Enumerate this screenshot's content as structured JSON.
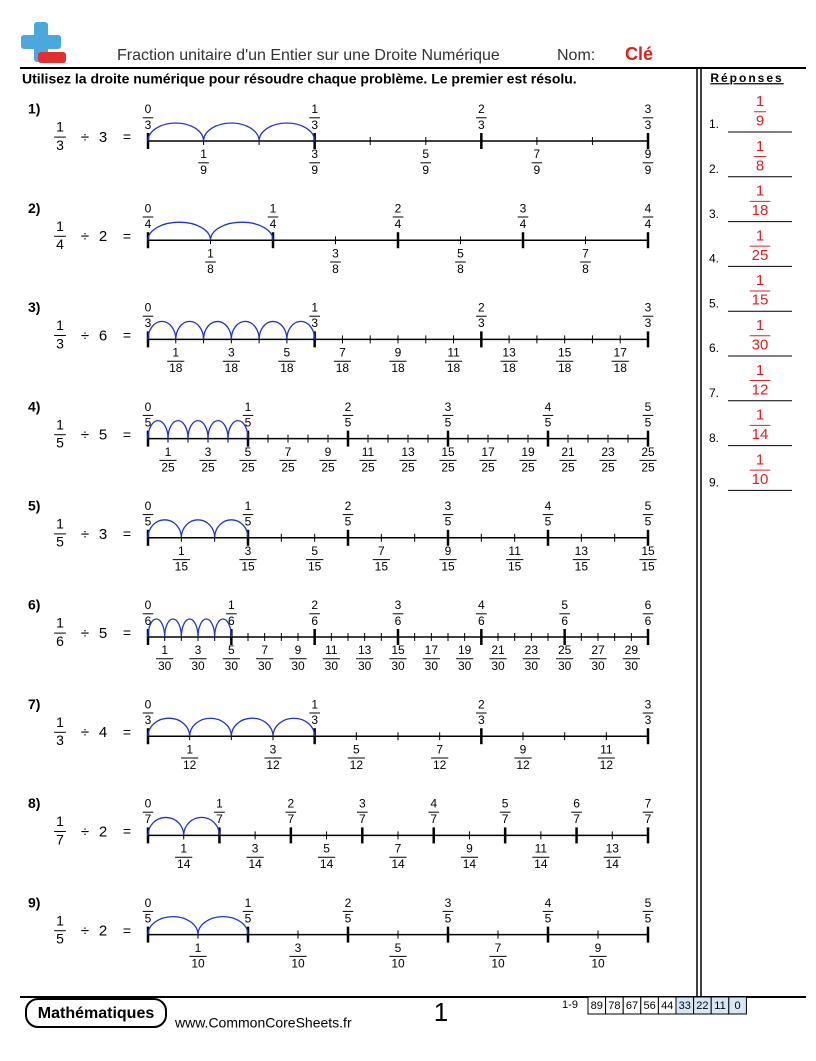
{
  "header": {
    "title": "Fraction unitaire d'un Entier sur une Droite Numérique",
    "name_label": "Nom:",
    "key": "Clé"
  },
  "instructions": "Utilisez la droite numérique pour résoudre chaque problème. Le premier est résolu.",
  "divide_sign": "÷",
  "equals_sign": "=",
  "problems": [
    {
      "label": "1)",
      "fraction": [
        1,
        3
      ],
      "divisor": 3,
      "top": [
        [
          0,
          3
        ],
        [
          1,
          3
        ],
        [
          2,
          3
        ],
        [
          3,
          3
        ]
      ],
      "bottom": [
        [
          1,
          9
        ],
        [
          3,
          9
        ],
        [
          5,
          9
        ],
        [
          7,
          9
        ],
        [
          9,
          9
        ]
      ]
    },
    {
      "label": "2)",
      "fraction": [
        1,
        4
      ],
      "divisor": 2,
      "top": [
        [
          0,
          4
        ],
        [
          1,
          4
        ],
        [
          2,
          4
        ],
        [
          3,
          4
        ],
        [
          4,
          4
        ]
      ],
      "bottom": [
        [
          1,
          8
        ],
        [
          3,
          8
        ],
        [
          5,
          8
        ],
        [
          7,
          8
        ]
      ]
    },
    {
      "label": "3)",
      "fraction": [
        1,
        3
      ],
      "divisor": 6,
      "top": [
        [
          0,
          3
        ],
        [
          1,
          3
        ],
        [
          2,
          3
        ],
        [
          3,
          3
        ]
      ],
      "bottom": [
        [
          1,
          18
        ],
        [
          3,
          18
        ],
        [
          5,
          18
        ],
        [
          7,
          18
        ],
        [
          9,
          18
        ],
        [
          11,
          18
        ],
        [
          13,
          18
        ],
        [
          15,
          18
        ],
        [
          17,
          18
        ]
      ]
    },
    {
      "label": "4)",
      "fraction": [
        1,
        5
      ],
      "divisor": 5,
      "top": [
        [
          0,
          5
        ],
        [
          1,
          5
        ],
        [
          2,
          5
        ],
        [
          3,
          5
        ],
        [
          4,
          5
        ],
        [
          5,
          5
        ]
      ],
      "bottom": [
        [
          1,
          25
        ],
        [
          3,
          25
        ],
        [
          5,
          25
        ],
        [
          7,
          25
        ],
        [
          9,
          25
        ],
        [
          11,
          25
        ],
        [
          13,
          25
        ],
        [
          15,
          25
        ],
        [
          17,
          25
        ],
        [
          19,
          25
        ],
        [
          21,
          25
        ],
        [
          23,
          25
        ],
        [
          25,
          25
        ]
      ]
    },
    {
      "label": "5)",
      "fraction": [
        1,
        5
      ],
      "divisor": 3,
      "top": [
        [
          0,
          5
        ],
        [
          1,
          5
        ],
        [
          2,
          5
        ],
        [
          3,
          5
        ],
        [
          4,
          5
        ],
        [
          5,
          5
        ]
      ],
      "bottom": [
        [
          1,
          15
        ],
        [
          3,
          15
        ],
        [
          5,
          15
        ],
        [
          7,
          15
        ],
        [
          9,
          15
        ],
        [
          11,
          15
        ],
        [
          13,
          15
        ],
        [
          15,
          15
        ]
      ]
    },
    {
      "label": "6)",
      "fraction": [
        1,
        6
      ],
      "divisor": 5,
      "top": [
        [
          0,
          6
        ],
        [
          1,
          6
        ],
        [
          2,
          6
        ],
        [
          3,
          6
        ],
        [
          4,
          6
        ],
        [
          5,
          6
        ],
        [
          6,
          6
        ]
      ],
      "bottom": [
        [
          1,
          30
        ],
        [
          3,
          30
        ],
        [
          5,
          30
        ],
        [
          7,
          30
        ],
        [
          9,
          30
        ],
        [
          11,
          30
        ],
        [
          13,
          30
        ],
        [
          15,
          30
        ],
        [
          17,
          30
        ],
        [
          19,
          30
        ],
        [
          21,
          30
        ],
        [
          23,
          30
        ],
        [
          25,
          30
        ],
        [
          27,
          30
        ],
        [
          29,
          30
        ]
      ]
    },
    {
      "label": "7)",
      "fraction": [
        1,
        3
      ],
      "divisor": 4,
      "top": [
        [
          0,
          3
        ],
        [
          1,
          3
        ],
        [
          2,
          3
        ],
        [
          3,
          3
        ]
      ],
      "bottom": [
        [
          1,
          12
        ],
        [
          3,
          12
        ],
        [
          5,
          12
        ],
        [
          7,
          12
        ],
        [
          9,
          12
        ],
        [
          11,
          12
        ]
      ]
    },
    {
      "label": "8)",
      "fraction": [
        1,
        7
      ],
      "divisor": 2,
      "top": [
        [
          0,
          7
        ],
        [
          1,
          7
        ],
        [
          2,
          7
        ],
        [
          3,
          7
        ],
        [
          4,
          7
        ],
        [
          5,
          7
        ],
        [
          6,
          7
        ],
        [
          7,
          7
        ]
      ],
      "bottom": [
        [
          1,
          14
        ],
        [
          3,
          14
        ],
        [
          5,
          14
        ],
        [
          7,
          14
        ],
        [
          9,
          14
        ],
        [
          11,
          14
        ],
        [
          13,
          14
        ]
      ]
    },
    {
      "label": "9)",
      "fraction": [
        1,
        5
      ],
      "divisor": 2,
      "top": [
        [
          0,
          5
        ],
        [
          1,
          5
        ],
        [
          2,
          5
        ],
        [
          3,
          5
        ],
        [
          4,
          5
        ],
        [
          5,
          5
        ]
      ],
      "bottom": [
        [
          1,
          10
        ],
        [
          3,
          10
        ],
        [
          5,
          10
        ],
        [
          7,
          10
        ],
        [
          9,
          10
        ]
      ]
    }
  ],
  "answers": {
    "title": "Réponses",
    "items": [
      {
        "label": "1.",
        "fraction": [
          1,
          9
        ]
      },
      {
        "label": "2.",
        "fraction": [
          1,
          8
        ]
      },
      {
        "label": "3.",
        "fraction": [
          1,
          18
        ]
      },
      {
        "label": "4.",
        "fraction": [
          1,
          25
        ]
      },
      {
        "label": "5.",
        "fraction": [
          1,
          15
        ]
      },
      {
        "label": "6.",
        "fraction": [
          1,
          30
        ]
      },
      {
        "label": "7.",
        "fraction": [
          1,
          12
        ]
      },
      {
        "label": "8.",
        "fraction": [
          1,
          14
        ]
      },
      {
        "label": "9.",
        "fraction": [
          1,
          10
        ]
      }
    ]
  },
  "footer": {
    "subject": "Mathématiques",
    "website": "www.CommonCoreSheets.fr",
    "page": "1",
    "score_range": "1-9",
    "scores": [
      89,
      78,
      67,
      56,
      44,
      33,
      22,
      11,
      0
    ]
  }
}
